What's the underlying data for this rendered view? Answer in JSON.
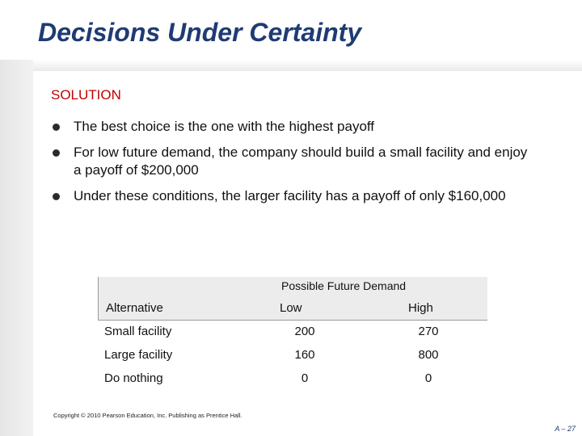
{
  "slide": {
    "title": "Decisions Under Certainty",
    "subheading": "SOLUTION",
    "bullets": [
      "The best choice is the one with the highest payoff",
      "For low future demand, the company should build a small facility and enjoy a payoff of $200,000",
      "Under these conditions, the larger facility has a payoff of only $160,000"
    ]
  },
  "table": {
    "group_header": "Possible Future Demand",
    "columns": [
      "Alternative",
      "Low",
      "High"
    ],
    "rows": [
      {
        "alternative": "Small facility",
        "low": "200",
        "high": "270"
      },
      {
        "alternative": "Large facility",
        "low": "160",
        "high": "800"
      },
      {
        "alternative": "Do nothing",
        "low": "0",
        "high": "0"
      }
    ]
  },
  "footer": {
    "copyright": "Copyright © 2010 Pearson Education, Inc. Publishing as Prentice Hall.",
    "page_number": "A – 27"
  },
  "colors": {
    "title": "#1f3b73",
    "subheading": "#c00000",
    "header_fill": "#ececec"
  }
}
